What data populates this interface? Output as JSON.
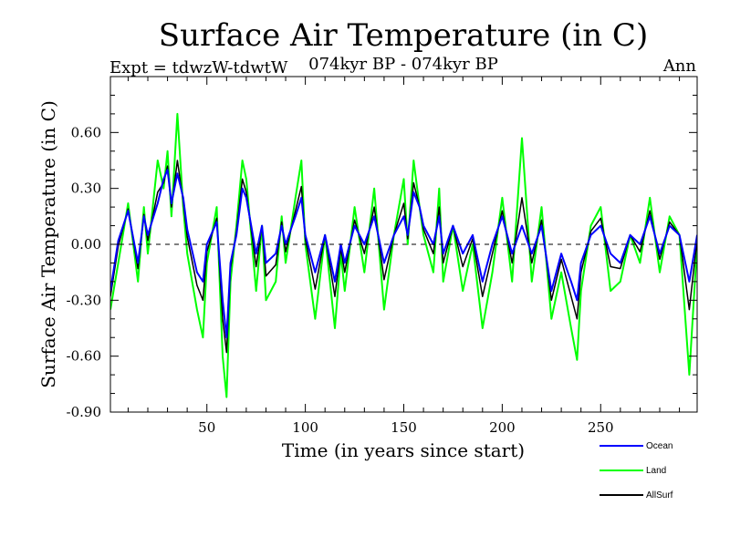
{
  "chart_data": {
    "type": "line",
    "title": "Surface Air Temperature (in C)",
    "subtitle_left": "Expt = tdwzW-tdwtW",
    "subtitle_center": "074kyr BP - 074kyr BP",
    "subtitle_right": "Ann",
    "xlabel": "Time (in years since start)",
    "ylabel": "Surface Air Temperature (in C)",
    "xlim": [
      1,
      299
    ],
    "ylim": [
      -0.9,
      0.9
    ],
    "xticks": [
      50,
      100,
      150,
      200,
      250
    ],
    "xtick_labels": [
      "50",
      "100",
      "150",
      "200",
      "250"
    ],
    "yticks": [
      -0.9,
      -0.6,
      -0.3,
      0.0,
      0.3,
      0.6
    ],
    "ytick_labels": [
      "-0.90",
      "-0.60",
      "-0.30",
      "0.00",
      "0.30",
      "0.60"
    ],
    "legend_position": "bottom-right outside",
    "series": [
      {
        "name": "Ocean",
        "color": "#0000ff",
        "x": [
          1,
          5,
          10,
          15,
          18,
          20,
          25,
          28,
          30,
          32,
          35,
          38,
          40,
          45,
          48,
          50,
          55,
          58,
          60,
          62,
          65,
          68,
          70,
          75,
          78,
          80,
          85,
          88,
          90,
          95,
          98,
          100,
          105,
          110,
          115,
          118,
          120,
          125,
          130,
          135,
          140,
          145,
          150,
          152,
          155,
          158,
          160,
          165,
          168,
          170,
          175,
          180,
          185,
          190,
          195,
          200,
          205,
          210,
          215,
          220,
          225,
          230,
          235,
          238,
          240,
          245,
          250,
          255,
          260,
          265,
          270,
          275,
          280,
          285,
          290,
          295,
          299
        ],
        "values": [
          -0.25,
          0.02,
          0.18,
          -0.1,
          0.15,
          0.05,
          0.22,
          0.35,
          0.4,
          0.22,
          0.38,
          0.25,
          0.08,
          -0.15,
          -0.2,
          0.0,
          0.12,
          -0.3,
          -0.5,
          -0.1,
          0.05,
          0.3,
          0.25,
          -0.05,
          0.1,
          -0.1,
          -0.05,
          0.1,
          0.0,
          0.15,
          0.25,
          0.05,
          -0.15,
          0.05,
          -0.2,
          0.0,
          -0.1,
          0.1,
          0.0,
          0.15,
          -0.1,
          0.05,
          0.15,
          0.05,
          0.28,
          0.2,
          0.1,
          0.0,
          0.15,
          -0.05,
          0.1,
          -0.05,
          0.05,
          -0.2,
          0.0,
          0.15,
          -0.05,
          0.1,
          -0.05,
          0.1,
          -0.25,
          -0.05,
          -0.2,
          -0.3,
          -0.1,
          0.05,
          0.1,
          -0.05,
          -0.1,
          0.05,
          0.0,
          0.15,
          -0.05,
          0.1,
          0.05,
          -0.2,
          0.05
        ]
      },
      {
        "name": "Land",
        "color": "#00ff00",
        "x": [
          1,
          5,
          10,
          15,
          18,
          20,
          25,
          28,
          30,
          32,
          35,
          38,
          40,
          45,
          48,
          50,
          55,
          58,
          60,
          62,
          65,
          68,
          70,
          75,
          78,
          80,
          85,
          88,
          90,
          95,
          98,
          100,
          105,
          110,
          115,
          118,
          120,
          125,
          130,
          135,
          140,
          145,
          150,
          152,
          155,
          158,
          160,
          165,
          168,
          170,
          175,
          180,
          185,
          190,
          195,
          200,
          205,
          210,
          215,
          220,
          225,
          230,
          235,
          238,
          240,
          245,
          250,
          255,
          260,
          265,
          270,
          275,
          280,
          285,
          290,
          295,
          299
        ],
        "values": [
          -0.35,
          -0.1,
          0.22,
          -0.2,
          0.2,
          -0.05,
          0.45,
          0.3,
          0.5,
          0.15,
          0.7,
          0.2,
          -0.05,
          -0.35,
          -0.5,
          -0.1,
          0.2,
          -0.6,
          -0.82,
          -0.2,
          0.1,
          0.45,
          0.35,
          -0.25,
          0.1,
          -0.3,
          -0.2,
          0.15,
          -0.1,
          0.25,
          0.45,
          0.0,
          -0.4,
          0.05,
          -0.45,
          -0.05,
          -0.25,
          0.2,
          -0.15,
          0.3,
          -0.35,
          0.05,
          0.35,
          0.0,
          0.45,
          0.2,
          0.05,
          -0.15,
          0.3,
          -0.2,
          0.1,
          -0.25,
          0.0,
          -0.45,
          -0.15,
          0.25,
          -0.2,
          0.57,
          -0.2,
          0.2,
          -0.4,
          -0.15,
          -0.45,
          -0.62,
          -0.25,
          0.1,
          0.2,
          -0.25,
          -0.2,
          0.05,
          -0.1,
          0.25,
          -0.15,
          0.15,
          0.05,
          -0.7,
          0.0
        ]
      },
      {
        "name": "AllSurf",
        "color": "#000000",
        "x": [
          1,
          5,
          10,
          15,
          18,
          20,
          25,
          28,
          30,
          32,
          35,
          38,
          40,
          45,
          48,
          50,
          55,
          58,
          60,
          62,
          65,
          68,
          70,
          75,
          78,
          80,
          85,
          88,
          90,
          95,
          98,
          100,
          105,
          110,
          115,
          118,
          120,
          125,
          130,
          135,
          140,
          145,
          150,
          152,
          155,
          158,
          160,
          165,
          168,
          170,
          175,
          180,
          185,
          190,
          195,
          200,
          205,
          210,
          215,
          220,
          225,
          230,
          235,
          238,
          240,
          245,
          250,
          255,
          260,
          265,
          270,
          275,
          280,
          285,
          290,
          295,
          299
        ],
        "values": [
          -0.28,
          -0.01,
          0.19,
          -0.13,
          0.16,
          0.02,
          0.28,
          0.33,
          0.42,
          0.2,
          0.45,
          0.23,
          0.04,
          -0.22,
          -0.3,
          -0.04,
          0.14,
          -0.4,
          -0.58,
          -0.13,
          0.07,
          0.35,
          0.28,
          -0.12,
          0.1,
          -0.17,
          -0.11,
          0.12,
          -0.04,
          0.18,
          0.31,
          0.03,
          -0.24,
          0.05,
          -0.28,
          -0.02,
          -0.15,
          0.13,
          -0.05,
          0.2,
          -0.19,
          0.05,
          0.22,
          0.03,
          0.33,
          0.2,
          0.08,
          -0.05,
          0.2,
          -0.1,
          0.1,
          -0.12,
          0.03,
          -0.28,
          -0.05,
          0.18,
          -0.1,
          0.25,
          -0.1,
          0.13,
          -0.3,
          -0.08,
          -0.28,
          -0.4,
          -0.15,
          0.07,
          0.14,
          -0.12,
          -0.13,
          0.05,
          -0.04,
          0.18,
          -0.08,
          0.12,
          0.05,
          -0.35,
          0.03
        ]
      }
    ]
  }
}
